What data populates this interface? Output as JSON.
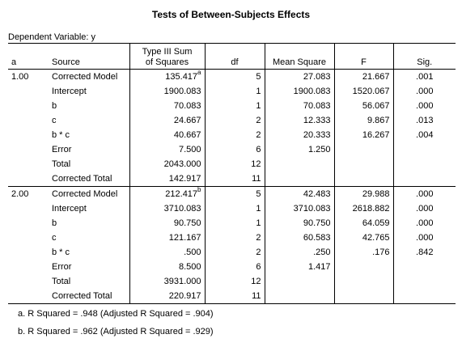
{
  "title": "Tests of Between-Subjects Effects",
  "dependent_variable": "Dependent Variable: y",
  "headers": {
    "a": "a",
    "source": "Source",
    "ss_line1": "Type III Sum",
    "ss_line2": "of Squares",
    "df": "df",
    "ms": "Mean Square",
    "f": "F",
    "sig": "Sig."
  },
  "groups": [
    {
      "level": "1.00",
      "rows": [
        {
          "source": "Corrected Model",
          "ss": "135.417",
          "sup": "a",
          "df": "5",
          "ms": "27.083",
          "f": "21.667",
          "sig": ".001"
        },
        {
          "source": "Intercept",
          "ss": "1900.083",
          "sup": "",
          "df": "1",
          "ms": "1900.083",
          "f": "1520.067",
          "sig": ".000"
        },
        {
          "source": "b",
          "ss": "70.083",
          "sup": "",
          "df": "1",
          "ms": "70.083",
          "f": "56.067",
          "sig": ".000"
        },
        {
          "source": "c",
          "ss": "24.667",
          "sup": "",
          "df": "2",
          "ms": "12.333",
          "f": "9.867",
          "sig": ".013"
        },
        {
          "source": "b * c",
          "ss": "40.667",
          "sup": "",
          "df": "2",
          "ms": "20.333",
          "f": "16.267",
          "sig": ".004"
        },
        {
          "source": "Error",
          "ss": "7.500",
          "sup": "",
          "df": "6",
          "ms": "1.250",
          "f": "",
          "sig": ""
        },
        {
          "source": "Total",
          "ss": "2043.000",
          "sup": "",
          "df": "12",
          "ms": "",
          "f": "",
          "sig": ""
        },
        {
          "source": "Corrected Total",
          "ss": "142.917",
          "sup": "",
          "df": "11",
          "ms": "",
          "f": "",
          "sig": ""
        }
      ]
    },
    {
      "level": "2.00",
      "rows": [
        {
          "source": "Corrected Model",
          "ss": "212.417",
          "sup": "b",
          "df": "5",
          "ms": "42.483",
          "f": "29.988",
          "sig": ".000"
        },
        {
          "source": "Intercept",
          "ss": "3710.083",
          "sup": "",
          "df": "1",
          "ms": "3710.083",
          "f": "2618.882",
          "sig": ".000"
        },
        {
          "source": "b",
          "ss": "90.750",
          "sup": "",
          "df": "1",
          "ms": "90.750",
          "f": "64.059",
          "sig": ".000"
        },
        {
          "source": "c",
          "ss": "121.167",
          "sup": "",
          "df": "2",
          "ms": "60.583",
          "f": "42.765",
          "sig": ".000"
        },
        {
          "source": "b * c",
          "ss": ".500",
          "sup": "",
          "df": "2",
          "ms": ".250",
          "f": ".176",
          "sig": ".842"
        },
        {
          "source": "Error",
          "ss": "8.500",
          "sup": "",
          "df": "6",
          "ms": "1.417",
          "f": "",
          "sig": ""
        },
        {
          "source": "Total",
          "ss": "3931.000",
          "sup": "",
          "df": "12",
          "ms": "",
          "f": "",
          "sig": ""
        },
        {
          "source": "Corrected Total",
          "ss": "220.917",
          "sup": "",
          "df": "11",
          "ms": "",
          "f": "",
          "sig": ""
        }
      ]
    }
  ],
  "footnotes": [
    "a. R Squared = .948 (Adjusted R Squared = .904)",
    "b. R Squared = .962 (Adjusted R Squared = .929)"
  ]
}
